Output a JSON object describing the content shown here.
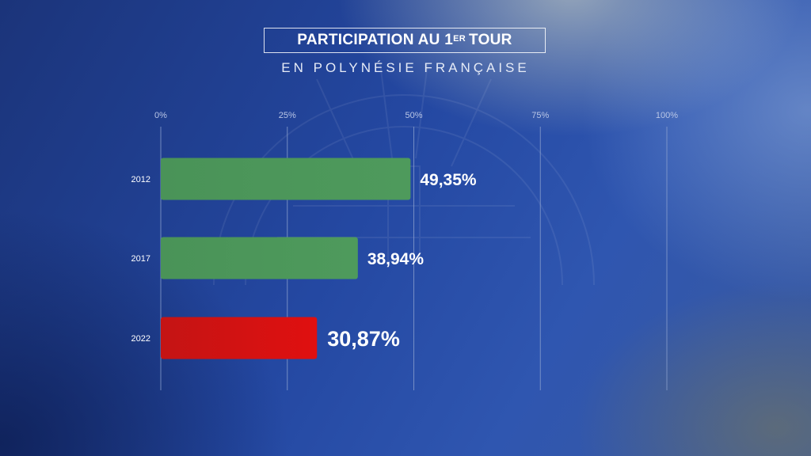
{
  "header": {
    "title_main": "PARTICIPATION AU 1",
    "title_sup": "ER",
    "title_end": "TOUR",
    "subtitle": "EN POLYNÉSIE FRANÇAISE"
  },
  "colors": {
    "bar_green": "#4e9a5c",
    "bar_red": "#e01010",
    "gridline": "#8ea3cf",
    "tick_text": "#b9c6e6"
  },
  "chart_data": {
    "type": "bar",
    "orientation": "horizontal",
    "title": "PARTICIPATION AU 1ER TOUR",
    "subtitle": "EN POLYNÉSIE FRANÇAISE",
    "categories": [
      "2012",
      "2017",
      "2022"
    ],
    "values": [
      49.35,
      38.94,
      30.87
    ],
    "data_labels": [
      "49,35%",
      "38,94%",
      "30,87%"
    ],
    "bar_colors": [
      "green",
      "green",
      "red"
    ],
    "xlim": [
      0,
      100
    ],
    "x_ticks": [
      0,
      25,
      50,
      75,
      100
    ],
    "x_tick_labels": [
      "0%",
      "25%",
      "50%",
      "75%",
      "100%"
    ],
    "xlabel": "",
    "ylabel": "",
    "grid": true,
    "legend": "none"
  }
}
